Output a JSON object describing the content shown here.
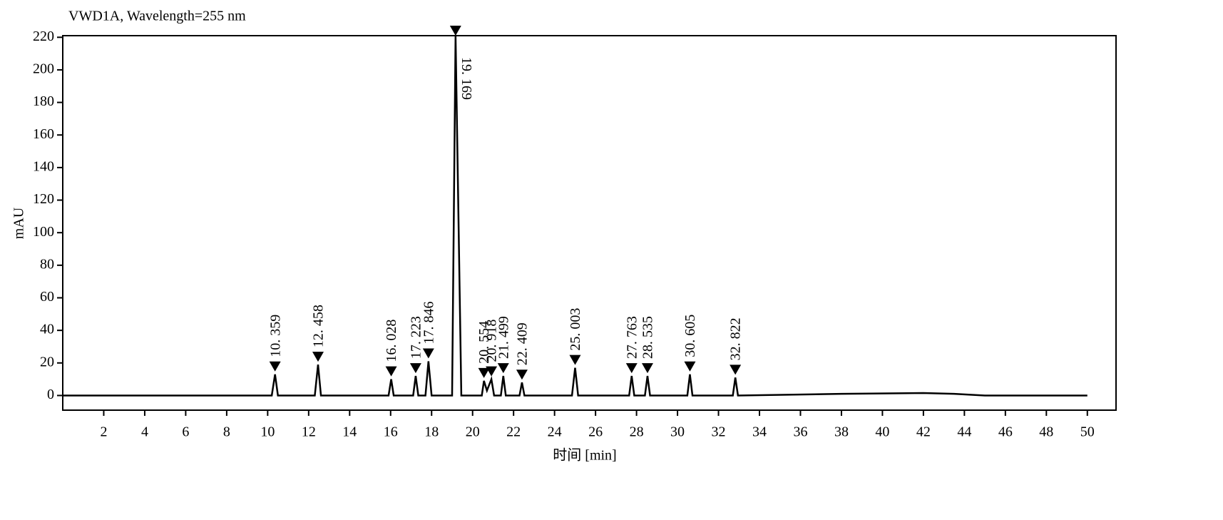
{
  "chart_data": {
    "type": "line",
    "title": "VWD1A, Wavelength=255 nm",
    "y_label": "mAU",
    "x_label": "时间 [min]",
    "xlim": [
      0,
      51.4
    ],
    "ylim": [
      -9,
      221
    ],
    "xticks": [
      2,
      4,
      6,
      8,
      10,
      12,
      14,
      16,
      18,
      20,
      22,
      24,
      26,
      28,
      30,
      32,
      34,
      36,
      38,
      40,
      42,
      44,
      46,
      48,
      50
    ],
    "yticks": [
      0,
      20,
      40,
      60,
      80,
      100,
      120,
      140,
      160,
      180,
      200,
      220
    ],
    "x": [
      0,
      10.2,
      10.359,
      10.5,
      12.3,
      12.458,
      12.6,
      15.9,
      16.028,
      16.15,
      17.1,
      17.223,
      17.35,
      17.7,
      17.846,
      18.0,
      19.0,
      19.169,
      19.45,
      20.45,
      20.554,
      20.7,
      20.918,
      21.05,
      21.38,
      21.499,
      21.62,
      22.29,
      22.409,
      22.53,
      24.85,
      25.003,
      25.15,
      27.64,
      27.763,
      27.89,
      28.41,
      28.535,
      28.66,
      30.48,
      30.605,
      30.73,
      32.7,
      32.822,
      32.95,
      38,
      42,
      43.5,
      45,
      50
    ],
    "series": [
      {
        "color": "#000000",
        "values": [
          0,
          0,
          13,
          0,
          0,
          19,
          0,
          0,
          10,
          0,
          0,
          12,
          0,
          0,
          21,
          0,
          0,
          221,
          0,
          0,
          9,
          3,
          10,
          0,
          0,
          12,
          0,
          0,
          8,
          0,
          0,
          17,
          0,
          0,
          12,
          0,
          0,
          12,
          0,
          0,
          13,
          0,
          0,
          11,
          0,
          1,
          1.5,
          1,
          0,
          0
        ]
      }
    ],
    "peaks": {
      "x": [
        10.359,
        12.458,
        16.028,
        17.223,
        17.846,
        19.169,
        20.554,
        20.918,
        21.499,
        22.409,
        25.003,
        27.763,
        28.535,
        30.605,
        32.822
      ],
      "labels": [
        "10. 359",
        "12. 458",
        "16. 028",
        "17. 223",
        "17. 846",
        "19. 169",
        "20. 554",
        "20. 918",
        "21. 499",
        "22. 409",
        "25. 003",
        "27. 763",
        "28. 535",
        "30. 605",
        "32. 822"
      ],
      "heights": [
        13,
        19,
        10,
        12,
        21,
        221,
        9,
        10,
        12,
        8,
        17,
        12,
        12,
        13,
        11
      ]
    }
  }
}
